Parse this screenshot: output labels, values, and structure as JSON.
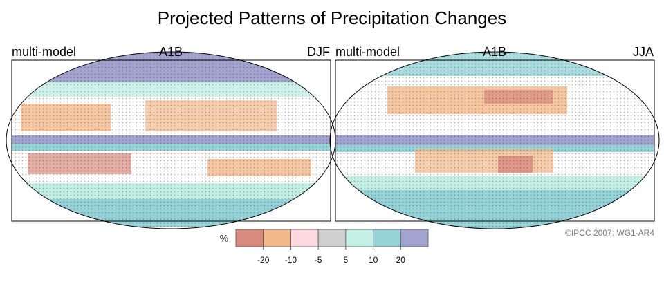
{
  "title": "Projected Patterns of Precipitation Changes",
  "panels": [
    {
      "model": "multi-model",
      "scenario": "A1B",
      "season": "DJF"
    },
    {
      "model": "multi-model",
      "scenario": "A1B",
      "season": "JJA"
    }
  ],
  "colorbar": {
    "unit": "%",
    "colors": [
      "#d98a7e",
      "#f4b98a",
      "#fcd9de",
      "#cfcfcf",
      "#c3efe5",
      "#95d3d8",
      "#a3a3cf"
    ],
    "ticks": [
      -20,
      -10,
      -5,
      5,
      10,
      20
    ]
  },
  "credit": "©IPCC  2007: WG1-AR4"
}
